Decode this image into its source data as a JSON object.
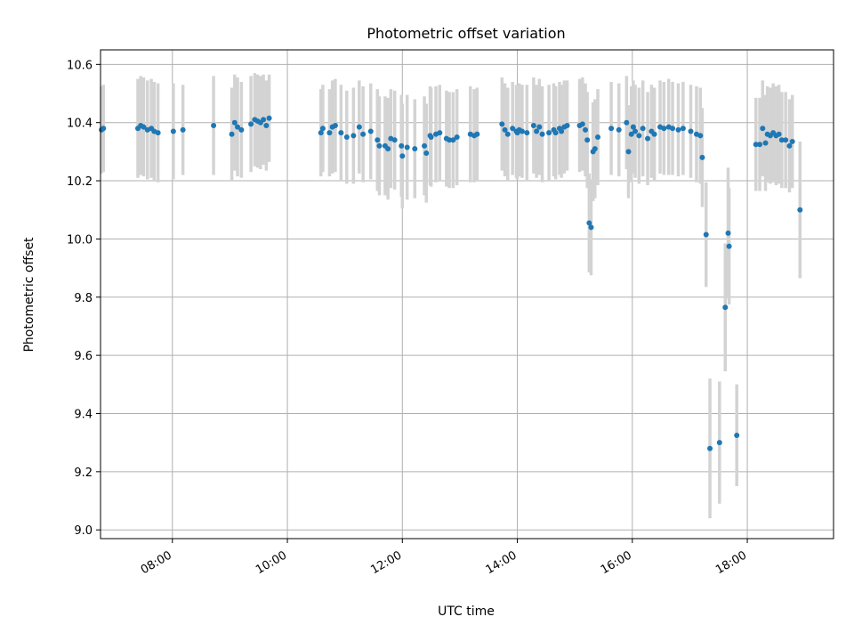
{
  "chart_data": {
    "type": "scatter",
    "title": "Photometric offset variation",
    "xlabel": "UTC time",
    "ylabel": "Photometric offset",
    "xlim": [
      "06:45",
      "19:30"
    ],
    "ylim": [
      8.97,
      10.65
    ],
    "x_ticks": [
      "08:00",
      "10:00",
      "12:00",
      "14:00",
      "16:00",
      "18:00"
    ],
    "y_ticks": [
      "9.0",
      "9.2",
      "9.4",
      "9.6",
      "9.8",
      "10.0",
      "10.2",
      "10.4",
      "10.6"
    ],
    "grid": true,
    "colors": {
      "marker": "#1f77b4",
      "errorbar": "#d3d3d3",
      "grid": "#b0b0b0"
    },
    "points": [
      {
        "t": "06:46",
        "y": 10.375,
        "err": 0.15
      },
      {
        "t": "06:48",
        "y": 10.38,
        "err": 0.15
      },
      {
        "t": "07:24",
        "y": 10.38,
        "err": 0.17
      },
      {
        "t": "07:27",
        "y": 10.39,
        "err": 0.17
      },
      {
        "t": "07:30",
        "y": 10.385,
        "err": 0.17
      },
      {
        "t": "07:34",
        "y": 10.375,
        "err": 0.17
      },
      {
        "t": "07:38",
        "y": 10.38,
        "err": 0.17
      },
      {
        "t": "07:41",
        "y": 10.37,
        "err": 0.17
      },
      {
        "t": "07:45",
        "y": 10.365,
        "err": 0.17
      },
      {
        "t": "08:01",
        "y": 10.37,
        "err": 0.165
      },
      {
        "t": "08:11",
        "y": 10.375,
        "err": 0.155
      },
      {
        "t": "08:43",
        "y": 10.39,
        "err": 0.17
      },
      {
        "t": "09:02",
        "y": 10.36,
        "err": 0.16
      },
      {
        "t": "09:05",
        "y": 10.4,
        "err": 0.165
      },
      {
        "t": "09:08",
        "y": 10.385,
        "err": 0.17
      },
      {
        "t": "09:12",
        "y": 10.375,
        "err": 0.165
      },
      {
        "t": "09:22",
        "y": 10.395,
        "err": 0.165
      },
      {
        "t": "09:26",
        "y": 10.41,
        "err": 0.16
      },
      {
        "t": "09:29",
        "y": 10.405,
        "err": 0.16
      },
      {
        "t": "09:32",
        "y": 10.4,
        "err": 0.16
      },
      {
        "t": "09:35",
        "y": 10.41,
        "err": 0.155
      },
      {
        "t": "09:38",
        "y": 10.39,
        "err": 0.155
      },
      {
        "t": "09:41",
        "y": 10.415,
        "err": 0.15
      },
      {
        "t": "10:35",
        "y": 10.365,
        "err": 0.15
      },
      {
        "t": "10:37",
        "y": 10.38,
        "err": 0.15
      },
      {
        "t": "10:44",
        "y": 10.365,
        "err": 0.15
      },
      {
        "t": "10:47",
        "y": 10.385,
        "err": 0.16
      },
      {
        "t": "10:50",
        "y": 10.39,
        "err": 0.16
      },
      {
        "t": "10:56",
        "y": 10.365,
        "err": 0.165
      },
      {
        "t": "11:02",
        "y": 10.35,
        "err": 0.16
      },
      {
        "t": "11:09",
        "y": 10.355,
        "err": 0.165
      },
      {
        "t": "11:15",
        "y": 10.385,
        "err": 0.16
      },
      {
        "t": "11:19",
        "y": 10.36,
        "err": 0.165
      },
      {
        "t": "11:27",
        "y": 10.37,
        "err": 0.165
      },
      {
        "t": "11:34",
        "y": 10.34,
        "err": 0.175
      },
      {
        "t": "11:36",
        "y": 10.32,
        "err": 0.17
      },
      {
        "t": "11:42",
        "y": 10.32,
        "err": 0.17
      },
      {
        "t": "11:45",
        "y": 10.31,
        "err": 0.175
      },
      {
        "t": "11:48",
        "y": 10.345,
        "err": 0.17
      },
      {
        "t": "11:52",
        "y": 10.34,
        "err": 0.17
      },
      {
        "t": "11:59",
        "y": 10.32,
        "err": 0.175
      },
      {
        "t": "12:00",
        "y": 10.285,
        "err": 0.18
      },
      {
        "t": "12:05",
        "y": 10.315,
        "err": 0.18
      },
      {
        "t": "12:13",
        "y": 10.31,
        "err": 0.17
      },
      {
        "t": "12:23",
        "y": 10.32,
        "err": 0.17
      },
      {
        "t": "12:25",
        "y": 10.295,
        "err": 0.17
      },
      {
        "t": "12:29",
        "y": 10.355,
        "err": 0.17
      },
      {
        "t": "12:30",
        "y": 10.35,
        "err": 0.17
      },
      {
        "t": "12:35",
        "y": 10.36,
        "err": 0.165
      },
      {
        "t": "12:39",
        "y": 10.365,
        "err": 0.165
      },
      {
        "t": "12:46",
        "y": 10.345,
        "err": 0.165
      },
      {
        "t": "12:49",
        "y": 10.34,
        "err": 0.165
      },
      {
        "t": "12:53",
        "y": 10.34,
        "err": 0.165
      },
      {
        "t": "12:57",
        "y": 10.35,
        "err": 0.165
      },
      {
        "t": "13:11",
        "y": 10.36,
        "err": 0.165
      },
      {
        "t": "13:15",
        "y": 10.355,
        "err": 0.16
      },
      {
        "t": "13:18",
        "y": 10.36,
        "err": 0.16
      },
      {
        "t": "13:44",
        "y": 10.395,
        "err": 0.16
      },
      {
        "t": "13:47",
        "y": 10.375,
        "err": 0.16
      },
      {
        "t": "13:50",
        "y": 10.36,
        "err": 0.16
      },
      {
        "t": "13:55",
        "y": 10.38,
        "err": 0.16
      },
      {
        "t": "13:59",
        "y": 10.37,
        "err": 0.16
      },
      {
        "t": "14:00",
        "y": 10.365,
        "err": 0.16
      },
      {
        "t": "14:02",
        "y": 10.375,
        "err": 0.16
      },
      {
        "t": "14:05",
        "y": 10.37,
        "err": 0.16
      },
      {
        "t": "14:10",
        "y": 10.365,
        "err": 0.165
      },
      {
        "t": "14:17",
        "y": 10.39,
        "err": 0.165
      },
      {
        "t": "14:20",
        "y": 10.37,
        "err": 0.16
      },
      {
        "t": "14:23",
        "y": 10.385,
        "err": 0.165
      },
      {
        "t": "14:26",
        "y": 10.36,
        "err": 0.165
      },
      {
        "t": "14:33",
        "y": 10.365,
        "err": 0.165
      },
      {
        "t": "14:38",
        "y": 10.375,
        "err": 0.16
      },
      {
        "t": "14:40",
        "y": 10.365,
        "err": 0.16
      },
      {
        "t": "14:44",
        "y": 10.38,
        "err": 0.16
      },
      {
        "t": "14:46",
        "y": 10.37,
        "err": 0.16
      },
      {
        "t": "14:49",
        "y": 10.385,
        "err": 0.16
      },
      {
        "t": "14:52",
        "y": 10.39,
        "err": 0.155
      },
      {
        "t": "15:05",
        "y": 10.39,
        "err": 0.16
      },
      {
        "t": "15:08",
        "y": 10.395,
        "err": 0.16
      },
      {
        "t": "15:11",
        "y": 10.375,
        "err": 0.16
      },
      {
        "t": "15:13",
        "y": 10.34,
        "err": 0.165
      },
      {
        "t": "15:15",
        "y": 10.055,
        "err": 0.17
      },
      {
        "t": "15:17",
        "y": 10.04,
        "err": 0.165
      },
      {
        "t": "15:19",
        "y": 10.3,
        "err": 0.17
      },
      {
        "t": "15:21",
        "y": 10.31,
        "err": 0.17
      },
      {
        "t": "15:24",
        "y": 10.35,
        "err": 0.165
      },
      {
        "t": "15:38",
        "y": 10.38,
        "err": 0.16
      },
      {
        "t": "15:46",
        "y": 10.375,
        "err": 0.16
      },
      {
        "t": "15:54",
        "y": 10.4,
        "err": 0.16
      },
      {
        "t": "15:56",
        "y": 10.3,
        "err": 0.16
      },
      {
        "t": "15:59",
        "y": 10.36,
        "err": 0.165
      },
      {
        "t": "16:01",
        "y": 10.385,
        "err": 0.16
      },
      {
        "t": "16:03",
        "y": 10.37,
        "err": 0.16
      },
      {
        "t": "16:07",
        "y": 10.355,
        "err": 0.165
      },
      {
        "t": "16:11",
        "y": 10.38,
        "err": 0.165
      },
      {
        "t": "16:16",
        "y": 10.345,
        "err": 0.16
      },
      {
        "t": "16:20",
        "y": 10.37,
        "err": 0.16
      },
      {
        "t": "16:23",
        "y": 10.36,
        "err": 0.16
      },
      {
        "t": "16:29",
        "y": 10.385,
        "err": 0.16
      },
      {
        "t": "16:33",
        "y": 10.38,
        "err": 0.16
      },
      {
        "t": "16:38",
        "y": 10.385,
        "err": 0.165
      },
      {
        "t": "16:42",
        "y": 10.38,
        "err": 0.16
      },
      {
        "t": "16:48",
        "y": 10.375,
        "err": 0.16
      },
      {
        "t": "16:53",
        "y": 10.38,
        "err": 0.16
      },
      {
        "t": "17:01",
        "y": 10.37,
        "err": 0.16
      },
      {
        "t": "17:07",
        "y": 10.36,
        "err": 0.165
      },
      {
        "t": "17:11",
        "y": 10.355,
        "err": 0.165
      },
      {
        "t": "17:13",
        "y": 10.28,
        "err": 0.17
      },
      {
        "t": "17:17",
        "y": 10.015,
        "err": 0.18
      },
      {
        "t": "17:21",
        "y": 9.28,
        "err": 0.24
      },
      {
        "t": "17:31",
        "y": 9.3,
        "err": 0.21
      },
      {
        "t": "17:37",
        "y": 9.765,
        "err": 0.22
      },
      {
        "t": "17:40",
        "y": 10.02,
        "err": 0.225
      },
      {
        "t": "17:41",
        "y": 9.975,
        "err": 0.2
      },
      {
        "t": "17:49",
        "y": 9.325,
        "err": 0.175
      },
      {
        "t": "18:09",
        "y": 10.325,
        "err": 0.16
      },
      {
        "t": "18:13",
        "y": 10.325,
        "err": 0.16
      },
      {
        "t": "18:16",
        "y": 10.38,
        "err": 0.165
      },
      {
        "t": "18:19",
        "y": 10.33,
        "err": 0.165
      },
      {
        "t": "18:21",
        "y": 10.36,
        "err": 0.165
      },
      {
        "t": "18:24",
        "y": 10.355,
        "err": 0.165
      },
      {
        "t": "18:27",
        "y": 10.365,
        "err": 0.17
      },
      {
        "t": "18:30",
        "y": 10.355,
        "err": 0.17
      },
      {
        "t": "18:33",
        "y": 10.36,
        "err": 0.17
      },
      {
        "t": "18:36",
        "y": 10.34,
        "err": 0.165
      },
      {
        "t": "18:40",
        "y": 10.34,
        "err": 0.165
      },
      {
        "t": "18:44",
        "y": 10.32,
        "err": 0.16
      },
      {
        "t": "18:47",
        "y": 10.335,
        "err": 0.16
      },
      {
        "t": "18:55",
        "y": 10.1,
        "err": 0.235
      }
    ]
  }
}
